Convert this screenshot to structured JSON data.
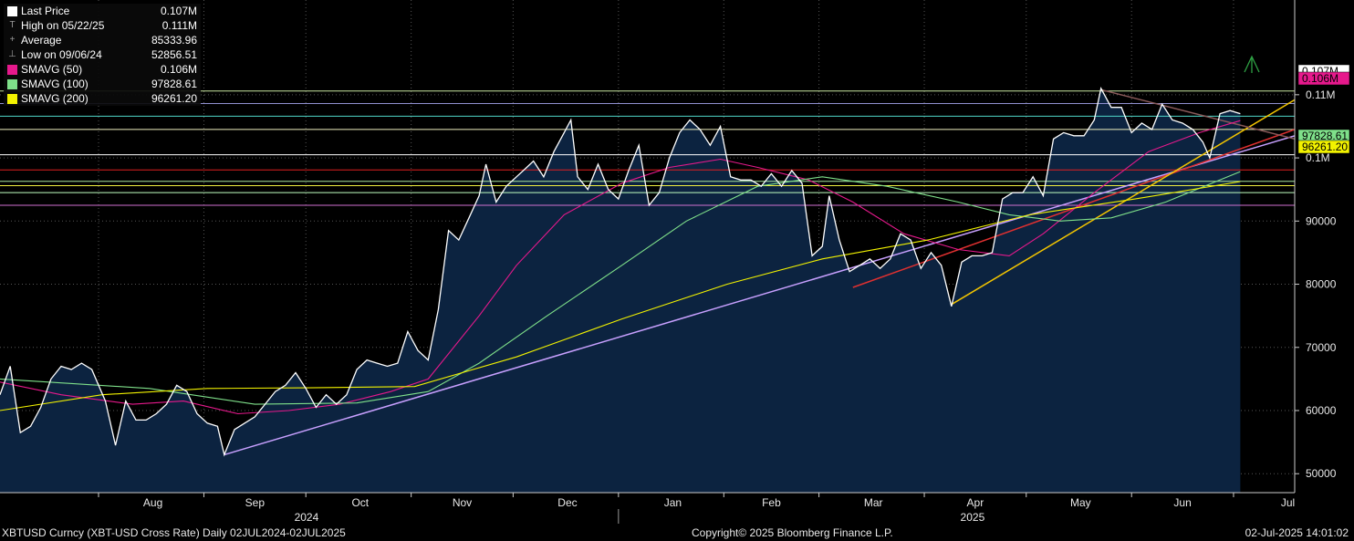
{
  "legend": {
    "items": [
      {
        "label": "Last Price",
        "value": "0.107M",
        "color": "#ffffff",
        "glyph": "swatch"
      },
      {
        "label": "High on 05/22/25",
        "value": "0.111M",
        "color": "#999999",
        "glyph": "T"
      },
      {
        "label": "Average",
        "value": "85333.96",
        "color": "#999999",
        "glyph": "+"
      },
      {
        "label": "Low on 09/06/24",
        "value": "52856.51",
        "color": "#999999",
        "glyph": "⊥"
      },
      {
        "label": "SMAVG (50)",
        "value": "0.106M",
        "color": "#e6198c",
        "glyph": "swatch"
      },
      {
        "label": "SMAVG (100)",
        "value": "97828.61",
        "color": "#7fe08a",
        "glyph": "swatch"
      },
      {
        "label": "SMAVG (200)",
        "value": "96261.20",
        "color": "#f2f200",
        "glyph": "swatch"
      }
    ]
  },
  "footer": {
    "security": "XBTUSD Curncy (XBT-USD Cross Rate)  Daily 02JUL2024-02JUL2025",
    "copyright": "Copyright© 2025 Bloomberg Finance L.P.",
    "timestamp": "02-Jul-2025 14:01:02"
  },
  "chart_data": {
    "type": "area",
    "title": "",
    "xlabel": "",
    "ylabel": "",
    "ylim": [
      47000,
      125000
    ],
    "xlim": [
      "2024-07-02",
      "2025-07-18"
    ],
    "x_tick_labels": [
      "Aug",
      "Sep",
      "Oct",
      "Nov",
      "Dec",
      "Jan",
      "Feb",
      "Mar",
      "Apr",
      "May",
      "Jun",
      "Jul"
    ],
    "year_labels": [
      "2024",
      "2025"
    ],
    "y_tick_labels": [
      "50000",
      "60000",
      "70000",
      "80000",
      "90000",
      "0.1M",
      "0.11M"
    ],
    "y_ticks": [
      50000,
      60000,
      70000,
      80000,
      90000,
      100000,
      110000
    ],
    "grid": true,
    "last_value_tags": [
      {
        "text": "0.107M",
        "value": 107000,
        "bg": "#ffffff",
        "fg": "#000000"
      },
      {
        "text": "0.106M",
        "value": 105900,
        "bg": "#e6198c",
        "fg": "#000000"
      },
      {
        "text": "97828.61",
        "value": 97828.61,
        "bg": "#7fe08a",
        "fg": "#000000"
      },
      {
        "text": "96261.20",
        "value": 96261.2,
        "bg": "#f2f200",
        "fg": "#000000"
      }
    ],
    "series": [
      {
        "name": "Last Price",
        "color": "#ffffff",
        "fill": "#0c2340",
        "points": [
          [
            "2024-07-02",
            62500
          ],
          [
            "2024-07-05",
            67000
          ],
          [
            "2024-07-08",
            56500
          ],
          [
            "2024-07-11",
            57500
          ],
          [
            "2024-07-14",
            60500
          ],
          [
            "2024-07-17",
            65000
          ],
          [
            "2024-07-20",
            67000
          ],
          [
            "2024-07-23",
            66500
          ],
          [
            "2024-07-26",
            67500
          ],
          [
            "2024-07-29",
            66500
          ],
          [
            "2024-08-02",
            61500
          ],
          [
            "2024-08-05",
            54500
          ],
          [
            "2024-08-08",
            61500
          ],
          [
            "2024-08-11",
            58500
          ],
          [
            "2024-08-14",
            58500
          ],
          [
            "2024-08-17",
            59500
          ],
          [
            "2024-08-20",
            61000
          ],
          [
            "2024-08-23",
            64000
          ],
          [
            "2024-08-26",
            63000
          ],
          [
            "2024-08-29",
            59500
          ],
          [
            "2024-09-01",
            58000
          ],
          [
            "2024-09-04",
            57500
          ],
          [
            "2024-09-06",
            53000
          ],
          [
            "2024-09-09",
            57000
          ],
          [
            "2024-09-12",
            58000
          ],
          [
            "2024-09-15",
            59000
          ],
          [
            "2024-09-18",
            61000
          ],
          [
            "2024-09-21",
            63000
          ],
          [
            "2024-09-24",
            64000
          ],
          [
            "2024-09-27",
            66000
          ],
          [
            "2024-09-30",
            63500
          ],
          [
            "2024-10-03",
            60500
          ],
          [
            "2024-10-06",
            62500
          ],
          [
            "2024-10-09",
            61000
          ],
          [
            "2024-10-12",
            62500
          ],
          [
            "2024-10-15",
            66500
          ],
          [
            "2024-10-18",
            68000
          ],
          [
            "2024-10-21",
            67500
          ],
          [
            "2024-10-24",
            67000
          ],
          [
            "2024-10-27",
            67500
          ],
          [
            "2024-10-30",
            72500
          ],
          [
            "2024-11-02",
            69500
          ],
          [
            "2024-11-05",
            68000
          ],
          [
            "2024-11-08",
            76000
          ],
          [
            "2024-11-11",
            88500
          ],
          [
            "2024-11-14",
            87000
          ],
          [
            "2024-11-17",
            90500
          ],
          [
            "2024-11-20",
            94000
          ],
          [
            "2024-11-22",
            99000
          ],
          [
            "2024-11-25",
            93000
          ],
          [
            "2024-11-28",
            95500
          ],
          [
            "2024-12-01",
            97000
          ],
          [
            "2024-12-04",
            98500
          ],
          [
            "2024-12-06",
            99500
          ],
          [
            "2024-12-09",
            97000
          ],
          [
            "2024-12-12",
            101000
          ],
          [
            "2024-12-15",
            104000
          ],
          [
            "2024-12-17",
            106000
          ],
          [
            "2024-12-19",
            97000
          ],
          [
            "2024-12-22",
            95000
          ],
          [
            "2024-12-25",
            99000
          ],
          [
            "2024-12-28",
            95000
          ],
          [
            "2024-12-31",
            93500
          ],
          [
            "2025-01-03",
            98000
          ],
          [
            "2025-01-06",
            102000
          ],
          [
            "2025-01-09",
            92500
          ],
          [
            "2025-01-12",
            94500
          ],
          [
            "2025-01-15",
            100000
          ],
          [
            "2025-01-18",
            104000
          ],
          [
            "2025-01-21",
            106000
          ],
          [
            "2025-01-24",
            104500
          ],
          [
            "2025-01-27",
            102000
          ],
          [
            "2025-01-30",
            105000
          ],
          [
            "2025-02-02",
            97000
          ],
          [
            "2025-02-05",
            96500
          ],
          [
            "2025-02-08",
            96500
          ],
          [
            "2025-02-11",
            95500
          ],
          [
            "2025-02-14",
            97500
          ],
          [
            "2025-02-17",
            95500
          ],
          [
            "2025-02-20",
            98000
          ],
          [
            "2025-02-23",
            96000
          ],
          [
            "2025-02-26",
            84500
          ],
          [
            "2025-03-01",
            86000
          ],
          [
            "2025-03-03",
            94000
          ],
          [
            "2025-03-06",
            87000
          ],
          [
            "2025-03-09",
            82000
          ],
          [
            "2025-03-12",
            83000
          ],
          [
            "2025-03-15",
            84000
          ],
          [
            "2025-03-18",
            82500
          ],
          [
            "2025-03-21",
            84000
          ],
          [
            "2025-03-24",
            88000
          ],
          [
            "2025-03-27",
            87000
          ],
          [
            "2025-03-30",
            82500
          ],
          [
            "2025-04-02",
            85000
          ],
          [
            "2025-04-05",
            83000
          ],
          [
            "2025-04-08",
            76500
          ],
          [
            "2025-04-11",
            83500
          ],
          [
            "2025-04-14",
            84500
          ],
          [
            "2025-04-17",
            84500
          ],
          [
            "2025-04-20",
            85000
          ],
          [
            "2025-04-23",
            93500
          ],
          [
            "2025-04-26",
            94500
          ],
          [
            "2025-04-29",
            94500
          ],
          [
            "2025-05-02",
            97000
          ],
          [
            "2025-05-05",
            94000
          ],
          [
            "2025-05-08",
            103000
          ],
          [
            "2025-05-11",
            104000
          ],
          [
            "2025-05-14",
            103500
          ],
          [
            "2025-05-17",
            103500
          ],
          [
            "2025-05-20",
            106000
          ],
          [
            "2025-05-22",
            111000
          ],
          [
            "2025-05-25",
            108000
          ],
          [
            "2025-05-28",
            108000
          ],
          [
            "2025-05-31",
            104000
          ],
          [
            "2025-06-03",
            105500
          ],
          [
            "2025-06-06",
            104500
          ],
          [
            "2025-06-09",
            108500
          ],
          [
            "2025-06-12",
            106000
          ],
          [
            "2025-06-15",
            105500
          ],
          [
            "2025-06-18",
            104500
          ],
          [
            "2025-06-21",
            102500
          ],
          [
            "2025-06-23",
            100000
          ],
          [
            "2025-06-26",
            107000
          ],
          [
            "2025-06-29",
            107500
          ],
          [
            "2025-07-02",
            107000
          ]
        ]
      },
      {
        "name": "SMAVG (50)",
        "color": "#e6198c",
        "points": [
          [
            "2024-07-02",
            64500
          ],
          [
            "2024-07-20",
            62500
          ],
          [
            "2024-08-10",
            61000
          ],
          [
            "2024-08-25",
            61500
          ],
          [
            "2024-09-10",
            59500
          ],
          [
            "2024-09-25",
            60000
          ],
          [
            "2024-10-10",
            61000
          ],
          [
            "2024-10-25",
            63000
          ],
          [
            "2024-11-05",
            65000
          ],
          [
            "2024-11-20",
            75000
          ],
          [
            "2024-12-01",
            83000
          ],
          [
            "2024-12-15",
            91000
          ],
          [
            "2025-01-01",
            96000
          ],
          [
            "2025-01-15",
            98500
          ],
          [
            "2025-01-30",
            99800
          ],
          [
            "2025-02-10",
            98500
          ],
          [
            "2025-02-25",
            96500
          ],
          [
            "2025-03-10",
            93000
          ],
          [
            "2025-03-25",
            88000
          ],
          [
            "2025-04-10",
            85500
          ],
          [
            "2025-04-25",
            84500
          ],
          [
            "2025-05-05",
            88000
          ],
          [
            "2025-05-20",
            94500
          ],
          [
            "2025-06-05",
            101000
          ],
          [
            "2025-06-20",
            104000
          ],
          [
            "2025-07-02",
            105900
          ]
        ]
      },
      {
        "name": "SMAVG (100)",
        "color": "#7fe08a",
        "points": [
          [
            "2024-07-02",
            65000
          ],
          [
            "2024-08-15",
            63500
          ],
          [
            "2024-09-15",
            61000
          ],
          [
            "2024-10-15",
            61200
          ],
          [
            "2024-11-05",
            63000
          ],
          [
            "2024-11-20",
            67500
          ],
          [
            "2024-12-10",
            75000
          ],
          [
            "2025-01-01",
            83000
          ],
          [
            "2025-01-20",
            90000
          ],
          [
            "2025-02-10",
            95500
          ],
          [
            "2025-03-01",
            97000
          ],
          [
            "2025-03-20",
            95500
          ],
          [
            "2025-04-10",
            93000
          ],
          [
            "2025-04-25",
            91000
          ],
          [
            "2025-05-10",
            90000
          ],
          [
            "2025-05-25",
            90500
          ],
          [
            "2025-06-10",
            93000
          ],
          [
            "2025-07-02",
            97828.61
          ]
        ]
      },
      {
        "name": "SMAVG (200)",
        "color": "#f2f200",
        "points": [
          [
            "2024-07-02",
            60000
          ],
          [
            "2024-08-01",
            62500
          ],
          [
            "2024-09-01",
            63500
          ],
          [
            "2024-10-01",
            63600
          ],
          [
            "2024-11-01",
            63800
          ],
          [
            "2024-12-01",
            68500
          ],
          [
            "2025-01-01",
            74500
          ],
          [
            "2025-02-01",
            80000
          ],
          [
            "2025-03-01",
            84000
          ],
          [
            "2025-04-01",
            87000
          ],
          [
            "2025-05-01",
            91000
          ],
          [
            "2025-06-01",
            93500
          ],
          [
            "2025-07-02",
            96261.2
          ]
        ]
      }
    ],
    "horizontal_lines": [
      {
        "value": 110600,
        "color": "#c8e6a0"
      },
      {
        "value": 108600,
        "color": "#9090d0"
      },
      {
        "value": 106600,
        "color": "#4fd6c8"
      },
      {
        "value": 104500,
        "color": "#f0f0c0"
      },
      {
        "value": 100500,
        "color": "#ffffff"
      },
      {
        "value": 98100,
        "color": "#e02020"
      },
      {
        "value": 96300,
        "color": "#a8e6a0"
      },
      {
        "value": 95600,
        "color": "#f0f040"
      },
      {
        "value": 94500,
        "color": "#c0ffc0"
      },
      {
        "value": 92500,
        "color": "#d070d0"
      }
    ],
    "trend_lines": [
      {
        "color": "#c8a0ff",
        "from": [
          "2024-09-06",
          53000
        ],
        "to": [
          "2025-07-18",
          103500
        ]
      },
      {
        "color": "#e03030",
        "from": [
          "2025-03-10",
          79500
        ],
        "to": [
          "2025-07-18",
          104500
        ]
      },
      {
        "color": "#f2c400",
        "from": [
          "2025-04-08",
          76800
        ],
        "to": [
          "2025-07-18",
          109200
        ]
      },
      {
        "color": "#8a5a5a",
        "from": [
          "2025-05-22",
          110800
        ],
        "to": [
          "2025-07-18",
          103000
        ]
      }
    ]
  }
}
